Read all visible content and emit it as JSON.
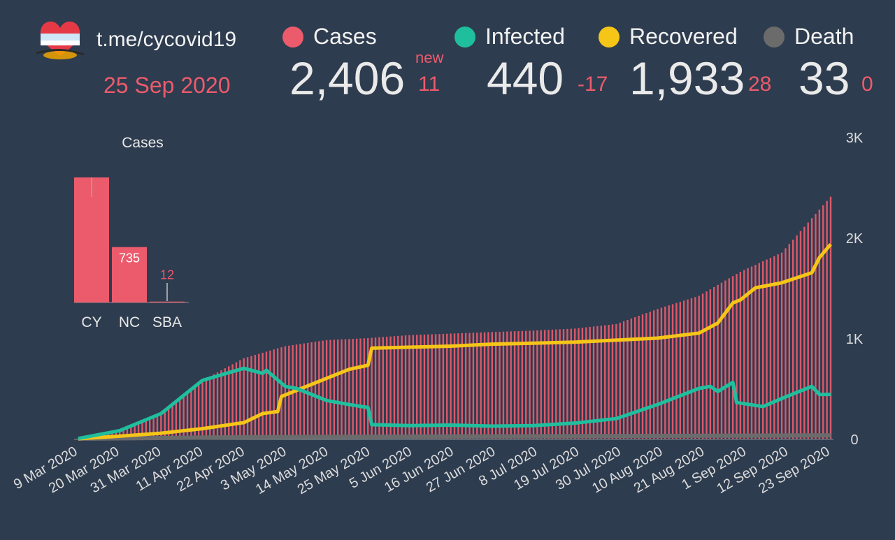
{
  "header": {
    "channel": "t.me/cycovid19",
    "date": "25 Sep 2020",
    "new_label": "new"
  },
  "legend": [
    {
      "label": "Cases",
      "color": "#ec5b6c"
    },
    {
      "label": "Infected",
      "color": "#1fbf9e"
    },
    {
      "label": "Recovered",
      "color": "#f5c518"
    },
    {
      "label": "Death",
      "color": "#6b6b6b"
    }
  ],
  "stats": {
    "cases": {
      "value": "2,406",
      "delta": "11"
    },
    "infected": {
      "value": "440",
      "delta": "-17"
    },
    "recovered": {
      "value": "1,933",
      "delta": "28"
    },
    "death": {
      "value": "33",
      "delta": "0"
    }
  },
  "colors": {
    "background": "#2e3c4f",
    "cases": "#ec5b6c",
    "infected": "#1fbf9e",
    "recovered": "#f5c518",
    "death": "#6b6b6b"
  },
  "chart_data": [
    {
      "type": "bar",
      "title": "Cases",
      "categories": [
        "CY",
        "NC",
        "SBA"
      ],
      "values": [
        1659,
        735,
        12
      ],
      "value_labels": [
        "",
        "735",
        "12"
      ]
    },
    {
      "type": "line",
      "title": "",
      "yticks": [
        "0",
        "1K",
        "2K",
        "3K"
      ],
      "ylim": [
        0,
        3000
      ],
      "x_tick_labels": [
        "9 Mar 2020",
        "20 Mar 2020",
        "31 Mar 2020",
        "11 Apr 2020",
        "22 Apr 2020",
        "3 May 2020",
        "14 May 2020",
        "25 May 2020",
        "5 Jun 2020",
        "16 Jun 2020",
        "27 Jun 2020",
        "8 Jul 2020",
        "19 Jul 2020",
        "30 Jul 2020",
        "10 Aug 2020",
        "21 Aug 2020",
        "1 Sep 2020",
        "12 Sep 2020",
        "23 Sep 2020"
      ],
      "series": [
        {
          "name": "Cases",
          "chart": "bar",
          "x": [
            "2020-03-09",
            "2020-03-20",
            "2020-03-31",
            "2020-04-11",
            "2020-04-22",
            "2020-05-03",
            "2020-05-14",
            "2020-05-25",
            "2020-06-05",
            "2020-06-16",
            "2020-06-27",
            "2020-07-08",
            "2020-07-19",
            "2020-07-30",
            "2020-08-10",
            "2020-08-21",
            "2020-09-01",
            "2020-09-12",
            "2020-09-25"
          ],
          "values": [
            2,
            80,
            250,
            580,
            800,
            920,
            980,
            1000,
            1030,
            1045,
            1060,
            1075,
            1095,
            1140,
            1290,
            1420,
            1660,
            1850,
            2406
          ]
        },
        {
          "name": "Infected",
          "x": [
            "2020-03-09",
            "2020-03-20",
            "2020-03-31",
            "2020-04-11",
            "2020-04-22",
            "2020-04-27",
            "2020-04-28",
            "2020-05-03",
            "2020-05-06",
            "2020-05-14",
            "2020-05-20",
            "2020-05-25",
            "2020-05-26",
            "2020-06-05",
            "2020-06-16",
            "2020-06-27",
            "2020-07-08",
            "2020-07-19",
            "2020-07-30",
            "2020-08-10",
            "2020-08-21",
            "2020-08-24",
            "2020-08-26",
            "2020-08-30",
            "2020-08-31",
            "2020-09-07",
            "2020-09-12",
            "2020-09-20",
            "2020-09-22",
            "2020-09-25"
          ],
          "values": [
            2,
            80,
            250,
            580,
            700,
            650,
            680,
            520,
            500,
            380,
            340,
            310,
            140,
            130,
            135,
            125,
            130,
            155,
            200,
            340,
            500,
            520,
            470,
            560,
            360,
            320,
            400,
            520,
            440,
            440
          ]
        },
        {
          "name": "Recovered",
          "x": [
            "2020-03-09",
            "2020-03-20",
            "2020-03-31",
            "2020-04-11",
            "2020-04-22",
            "2020-04-27",
            "2020-05-01",
            "2020-05-02",
            "2020-05-06",
            "2020-05-14",
            "2020-05-20",
            "2020-05-25",
            "2020-05-26",
            "2020-06-05",
            "2020-06-16",
            "2020-06-27",
            "2020-07-08",
            "2020-07-19",
            "2020-07-30",
            "2020-08-10",
            "2020-08-21",
            "2020-08-26",
            "2020-08-30",
            "2020-09-01",
            "2020-09-05",
            "2020-09-12",
            "2020-09-20",
            "2020-09-22",
            "2020-09-25"
          ],
          "values": [
            0,
            25,
            55,
            100,
            160,
            250,
            270,
            420,
            480,
            600,
            690,
            730,
            900,
            910,
            920,
            940,
            950,
            960,
            980,
            1000,
            1050,
            1150,
            1350,
            1380,
            1500,
            1550,
            1650,
            1800,
            1933
          ]
        },
        {
          "name": "Death",
          "x": [
            "2020-03-09",
            "2020-04-22",
            "2020-05-25",
            "2020-09-25"
          ],
          "values": [
            0,
            15,
            20,
            33
          ]
        }
      ]
    }
  ]
}
